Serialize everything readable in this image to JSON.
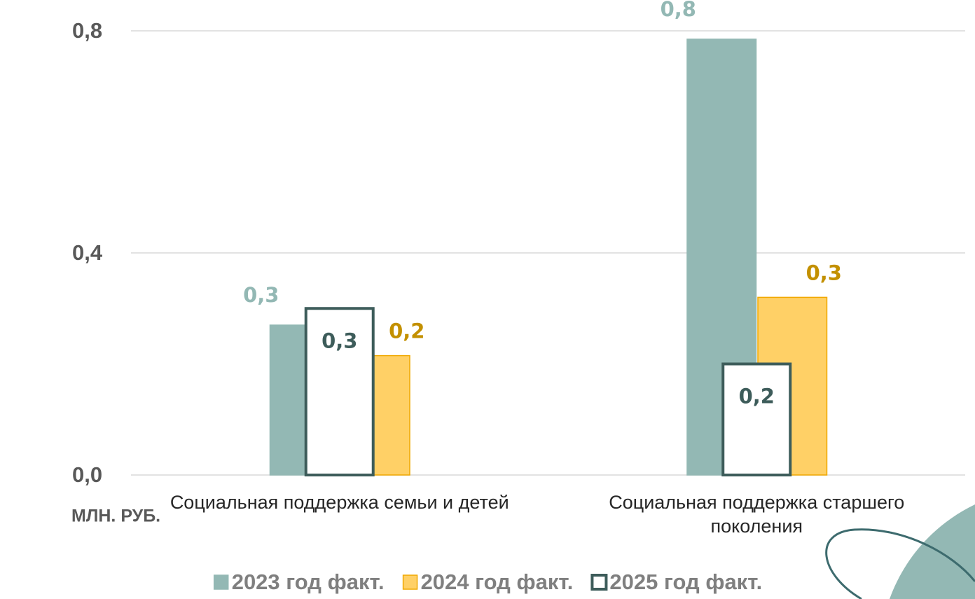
{
  "chart_data": {
    "type": "bar",
    "y_axis_label": "МЛН. РУБ.",
    "categories": [
      "Социальная поддержка семьи и детей",
      "Социальная поддержка старшего поколения"
    ],
    "series": [
      {
        "name": "2023 год факт.",
        "color": "#93b8b4",
        "edgecolor": "#93b8b4",
        "label_color": "#93b8b4",
        "values": [
          0.27,
          0.785
        ],
        "value_labels": [
          "0,3",
          "0,8"
        ]
      },
      {
        "name": "2024 год факт.",
        "color": "#ffd066",
        "edgecolor": "#f0a800",
        "label_color": "#c39000",
        "values": [
          0.215,
          0.32
        ],
        "value_labels": [
          "0,2",
          "0,3"
        ]
      },
      {
        "name": "2025 год факт.",
        "color": "#ffffff",
        "edgecolor": "#3d5c5a",
        "label_color": "#3d5c5a",
        "values": [
          0.3,
          0.2
        ],
        "value_labels": [
          "0,3",
          "0,2"
        ]
      }
    ],
    "ylim": [
      0,
      0.8
    ],
    "yticks": [
      {
        "value": 0,
        "label": "0,0"
      },
      {
        "value": 0.4,
        "label": "0,4"
      },
      {
        "value": 0.8,
        "label": "0,8"
      }
    ],
    "grid": true
  }
}
